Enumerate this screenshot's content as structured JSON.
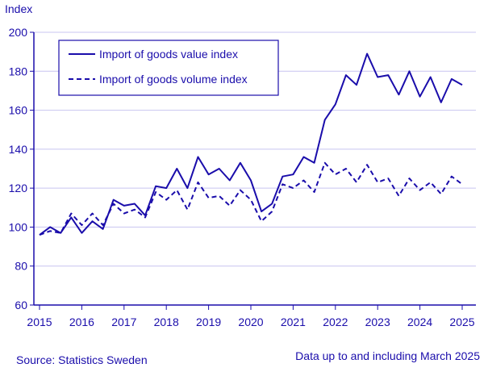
{
  "chart_data": {
    "type": "line",
    "ylabel": "Index",
    "ylim": [
      60,
      200
    ],
    "yticks": [
      60,
      80,
      100,
      120,
      140,
      160,
      180,
      200
    ],
    "xticks": [
      "2015",
      "2016",
      "2017",
      "2018",
      "2019",
      "2020",
      "2021",
      "2022",
      "2023",
      "2024",
      "2025"
    ],
    "x_start": "2015 Q1",
    "x_end": "2025 Q1",
    "frequency": "quarterly",
    "grid": true,
    "legend_position": "top-left",
    "color": "#1a0dab",
    "series": [
      {
        "name": "Import of goods value index",
        "style": "solid",
        "values": [
          96,
          100,
          97,
          105,
          97,
          103,
          99,
          114,
          111,
          112,
          106,
          121,
          120,
          130,
          120,
          136,
          127,
          130,
          124,
          133,
          124,
          108,
          112,
          126,
          127,
          136,
          133,
          155,
          163,
          178,
          173,
          189,
          177,
          178,
          168,
          180,
          167,
          177,
          164,
          176,
          173
        ]
      },
      {
        "name": "Import of goods volume index",
        "style": "dashed",
        "values": [
          96,
          98,
          97,
          107,
          101,
          107,
          101,
          112,
          107,
          109,
          105,
          118,
          114,
          119,
          109,
          123,
          115,
          116,
          111,
          119,
          114,
          103,
          108,
          122,
          120,
          124,
          118,
          133,
          127,
          130,
          123,
          132,
          123,
          125,
          116,
          125,
          119,
          123,
          117,
          126,
          122
        ]
      }
    ]
  },
  "footer": {
    "source": "Source: Statistics Sweden",
    "note": "Data up to and including March 2025"
  }
}
